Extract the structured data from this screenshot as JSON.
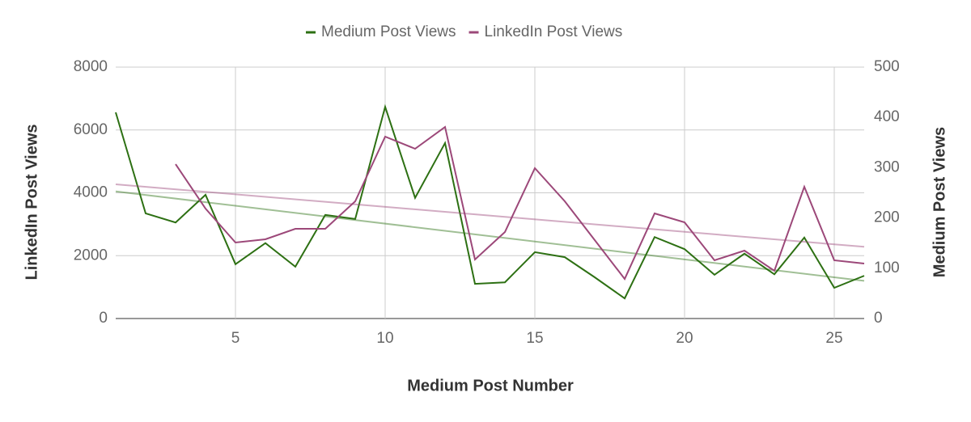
{
  "chart_data": {
    "type": "line",
    "x_label": "Medium Post Number",
    "y_label": "LinkedIn Post Views",
    "y2_label": "Medium Post Views",
    "x": [
      1,
      2,
      3,
      4,
      5,
      6,
      7,
      8,
      9,
      10,
      11,
      12,
      13,
      14,
      15,
      16,
      17,
      18,
      19,
      20,
      21,
      22,
      23,
      24,
      25,
      26
    ],
    "series": [
      {
        "name": "Medium Post Views",
        "color": "#2d7013",
        "axis": "y2",
        "values": [
          410,
          209,
          191,
          246,
          108,
          150,
          103,
          206,
          198,
          421,
          240,
          349,
          69,
          72,
          132,
          122,
          82,
          40,
          162,
          138,
          87,
          129,
          88,
          161,
          61,
          85
        ]
      },
      {
        "name": "LinkedIn Post Views",
        "color": "#9c4879",
        "values": [
          null,
          null,
          4913,
          3498,
          2418,
          2521,
          2855,
          2855,
          3730,
          5788,
          5402,
          6096,
          1878,
          2752,
          4785,
          3730,
          2495,
          1260,
          3344,
          3061,
          1852,
          2161,
          1518,
          4193,
          1852,
          1749
        ]
      }
    ],
    "xlim": [
      1,
      26
    ],
    "xticks": [
      5,
      10,
      15,
      20,
      25
    ],
    "ylim": [
      0,
      8000
    ],
    "yticks": [
      0,
      2000,
      4000,
      6000,
      8000
    ],
    "y2lim": [
      0,
      500
    ],
    "y2ticks": [
      0,
      100,
      200,
      300,
      400,
      500
    ],
    "grid": true,
    "trendline": true,
    "legend": "top"
  }
}
